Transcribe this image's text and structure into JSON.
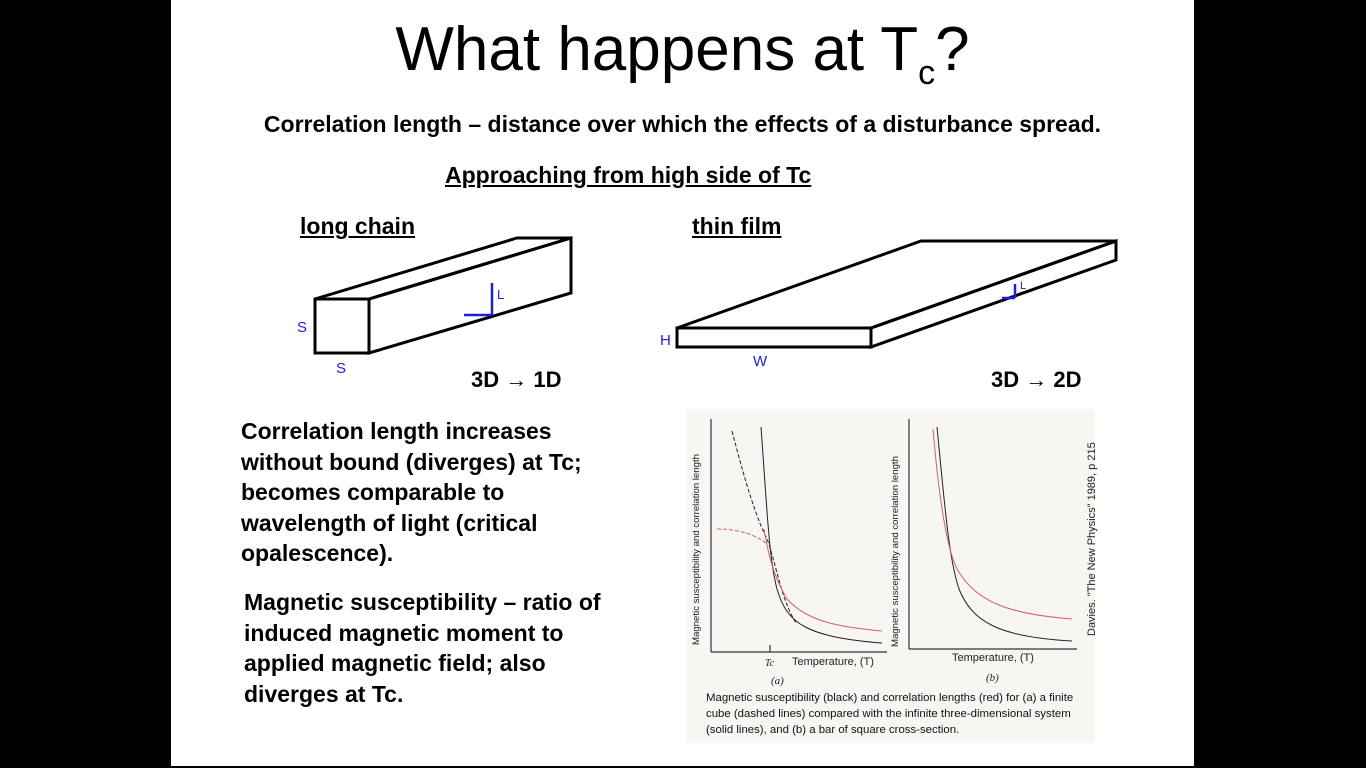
{
  "slide": {
    "title": "What happens at T",
    "title_subscript": "c",
    "title_suffix": "?",
    "subtitle": "Correlation length – distance over which the effects of a disturbance spread.",
    "section_heading": "Approaching from high side of Tc"
  },
  "long_chain": {
    "label": "long chain",
    "edge_label_1": "S",
    "edge_label_2": "S",
    "length_label": "L",
    "dimension_text": "3D → 1D"
  },
  "thin_film": {
    "label": "thin film",
    "height_label": "H",
    "width_label": "W",
    "length_label": "L",
    "dimension_text": "3D → 2D"
  },
  "paragraphs": {
    "correlation": "Correlation length increases without bound (diverges) at Tc; becomes comparable to wavelength of light (critical opalescence).",
    "susceptibility": "Magnetic susceptibility – ratio of induced magnetic moment to applied magnetic field; also diverges at Tc."
  },
  "figure": {
    "y_axis_label": "Magnetic susceptibility and correlation length",
    "x_axis_label": "Temperature, (T)",
    "tc_label": "Tc",
    "panel_a": "(a)",
    "panel_b": "(b)",
    "source": "Davies. \"The New Physics\" 1989, p 215",
    "caption": "Magnetic susceptibility (black) and correlation lengths (red) for (a) a finite cube (dashed lines) compared with the infinite three-dimensional system (solid lines), and (b) a bar of square cross-section."
  },
  "colors": {
    "annotation_blue": "#1f1fd6",
    "correlation_red": "#d06070",
    "susceptibility_black": "#222222"
  }
}
